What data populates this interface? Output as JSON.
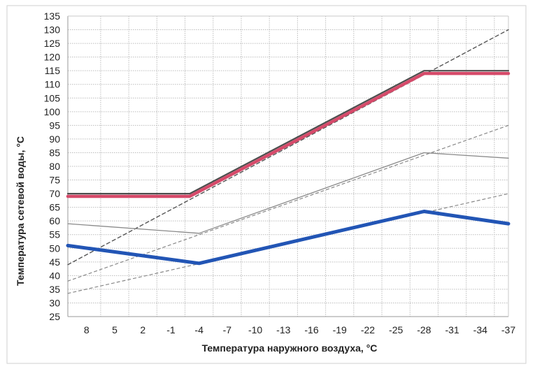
{
  "chart_data": {
    "type": "line",
    "title": "",
    "xlabel": "Температура наружного воздуха, °C",
    "ylabel": "Температура сетевой воды, °C",
    "x_ticks": [
      "8",
      "5",
      "2",
      "-1",
      "-4",
      "-7",
      "-10",
      "-13",
      "-16",
      "-19",
      "-22",
      "-25",
      "-28",
      "-31",
      "-34",
      "-37"
    ],
    "y_ticks": [
      "25",
      "30",
      "35",
      "40",
      "45",
      "50",
      "55",
      "60",
      "65",
      "70",
      "75",
      "80",
      "85",
      "90",
      "95",
      "100",
      "105",
      "110",
      "115",
      "120",
      "125",
      "130",
      "135"
    ],
    "xlim": [
      10,
      -37
    ],
    "ylim": [
      25,
      135
    ],
    "grid": true,
    "legend": "none",
    "series": [
      {
        "style": "red-thick",
        "color": "#d64a6a",
        "x": [
          10,
          -3,
          -28,
          -37
        ],
        "y": [
          69,
          69,
          114,
          114
        ]
      },
      {
        "style": "dark-thick",
        "color": "#4d4d4d",
        "x": [
          10,
          -3,
          -28,
          -37
        ],
        "y": [
          70,
          70,
          115,
          115
        ]
      },
      {
        "style": "blue-thick",
        "color": "#2255b5",
        "x": [
          10,
          -4,
          -28,
          -37
        ],
        "y": [
          51,
          44.5,
          63.5,
          59
        ]
      },
      {
        "style": "gray-thin",
        "color": "#8a8a8a",
        "x": [
          10,
          -4,
          -28,
          -37
        ],
        "y": [
          59,
          55.5,
          85,
          83
        ]
      },
      {
        "style": "dashed-dark",
        "color": "#555555",
        "x": [
          10,
          -37
        ],
        "y": [
          44,
          130
        ]
      },
      {
        "style": "dashed-gray",
        "color": "#888888",
        "x": [
          10,
          -37
        ],
        "y": [
          38,
          95
        ]
      },
      {
        "style": "dashed-gray",
        "color": "#888888",
        "x": [
          10,
          -37
        ],
        "y": [
          33.5,
          70
        ]
      }
    ]
  }
}
